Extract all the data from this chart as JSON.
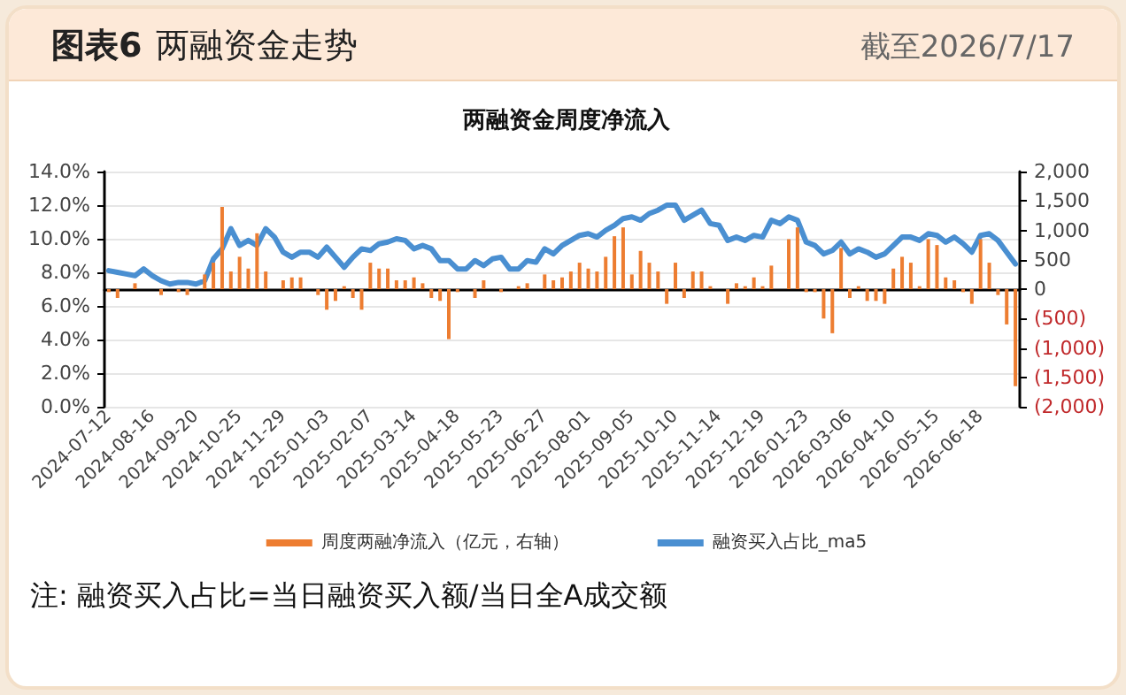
{
  "chart_data": {
    "type": "bar",
    "title": "两融资金周度净流入",
    "annotations": [
      "图表6",
      "两融资金走势",
      "截至2026/7/17",
      "注: 融资买入占比=当日融资买入额/当日全A成交额"
    ],
    "categories": [
      "2024-07-12",
      null,
      null,
      null,
      null,
      "2024-08-16",
      null,
      null,
      null,
      null,
      "2024-09-20",
      null,
      null,
      null,
      null,
      "2024-10-25",
      null,
      null,
      null,
      null,
      "2024-11-29",
      null,
      null,
      null,
      null,
      "2025-01-03",
      null,
      null,
      null,
      null,
      "2025-02-07",
      null,
      null,
      null,
      null,
      "2025-03-14",
      null,
      null,
      null,
      null,
      "2025-04-18",
      null,
      null,
      null,
      null,
      "2025-05-23",
      null,
      null,
      null,
      null,
      "2025-06-27",
      null,
      null,
      null,
      null,
      "2025-08-01",
      null,
      null,
      null,
      null,
      "2025-09-05",
      null,
      null,
      null,
      null,
      "2025-10-10",
      null,
      null,
      null,
      null,
      "2025-11-14",
      null,
      null,
      null,
      null,
      "2025-12-19",
      null,
      null,
      null,
      null,
      "2026-01-23",
      null,
      null,
      null,
      null,
      "2026-03-06",
      null,
      null,
      null,
      null,
      "2026-04-10",
      null,
      null,
      null,
      null,
      "2026-05-15",
      null,
      null,
      null,
      null,
      "2026-06-18",
      null,
      null,
      null,
      null
    ],
    "series": [
      {
        "name": "周度两融净流入（亿元，右轴）",
        "axis": "y2",
        "color": "#ed7d31",
        "values": [
          -50,
          -150,
          0,
          100,
          0,
          0,
          -100,
          0,
          -50,
          -100,
          0,
          250,
          450,
          1400,
          300,
          550,
          350,
          950,
          300,
          0,
          150,
          200,
          200,
          0,
          -100,
          -350,
          -200,
          50,
          -150,
          -350,
          450,
          350,
          350,
          150,
          150,
          200,
          100,
          -150,
          -200,
          -850,
          -50,
          0,
          -150,
          150,
          0,
          -50,
          0,
          50,
          100,
          0,
          250,
          150,
          200,
          300,
          450,
          350,
          300,
          550,
          900,
          1050,
          250,
          650,
          450,
          300,
          -250,
          450,
          -150,
          300,
          300,
          50,
          0,
          -250,
          100,
          50,
          200,
          50,
          400,
          0,
          850,
          1050,
          -50,
          -50,
          -500,
          -750,
          700,
          -150,
          50,
          -200,
          -200,
          -250,
          350,
          550,
          450,
          50,
          850,
          750,
          200,
          150,
          -50,
          -250,
          850,
          450,
          -100,
          -600,
          -1650
        ]
      },
      {
        "name": "融资买入占比_ma5",
        "type": "line",
        "color": "#4a8fd1",
        "values": [
          8.1,
          8.0,
          7.9,
          7.8,
          8.2,
          7.8,
          7.5,
          7.3,
          7.4,
          7.4,
          7.3,
          7.5,
          8.8,
          9.4,
          10.6,
          9.6,
          9.9,
          9.6,
          10.6,
          10.1,
          9.2,
          8.9,
          9.2,
          9.2,
          8.9,
          9.5,
          8.9,
          8.3,
          8.9,
          9.4,
          9.3,
          9.7,
          9.8,
          10.0,
          9.9,
          9.4,
          9.6,
          9.4,
          8.7,
          8.7,
          8.2,
          8.2,
          8.7,
          8.4,
          8.8,
          8.9,
          8.2,
          8.2,
          8.7,
          8.6,
          9.4,
          9.1,
          9.6,
          9.9,
          10.2,
          10.3,
          10.1,
          10.5,
          10.8,
          11.2,
          11.3,
          11.1,
          11.5,
          11.7,
          12.0,
          12.0,
          11.1,
          11.4,
          11.7,
          10.9,
          10.8,
          9.9,
          10.1,
          9.9,
          10.2,
          10.1,
          11.1,
          10.9,
          11.3,
          11.1,
          9.8,
          9.6,
          9.1,
          9.3,
          9.8,
          9.1,
          9.4,
          9.2,
          8.9,
          9.1,
          9.6,
          10.1,
          10.1,
          9.9,
          10.3,
          10.2,
          9.8,
          10.1,
          9.7,
          9.2,
          10.2,
          10.3,
          9.9,
          9.2,
          8.5
        ]
      }
    ],
    "ylim": [
      0,
      14
    ],
    "yticks": [
      {
        "value": 0,
        "label": "0.0%"
      },
      {
        "value": 2,
        "label": "2.0%"
      },
      {
        "value": 4,
        "label": "4.0%"
      },
      {
        "value": 6,
        "label": "6.0%"
      },
      {
        "value": 8,
        "label": "8.0%"
      },
      {
        "value": 10,
        "label": "10.0%"
      },
      {
        "value": 12,
        "label": "12.0%"
      },
      {
        "value": 14,
        "label": "14.0%"
      }
    ],
    "y2lim": [
      -2000,
      2000
    ],
    "y2ticks": [
      {
        "value": -2000,
        "label": "(2,000)"
      },
      {
        "value": -1500,
        "label": "(1,500)"
      },
      {
        "value": -1000,
        "label": "(1,000)"
      },
      {
        "value": -500,
        "label": "(500)"
      },
      0,
      {
        "value": 500,
        "label": "500"
      },
      {
        "value": 1000,
        "label": "1,000"
      },
      {
        "value": 1500,
        "label": "1,500"
      },
      {
        "value": 2000,
        "label": "2,000"
      }
    ],
    "grid": "y",
    "legend": "bottom",
    "marker": "none",
    "line_style": "solid"
  }
}
